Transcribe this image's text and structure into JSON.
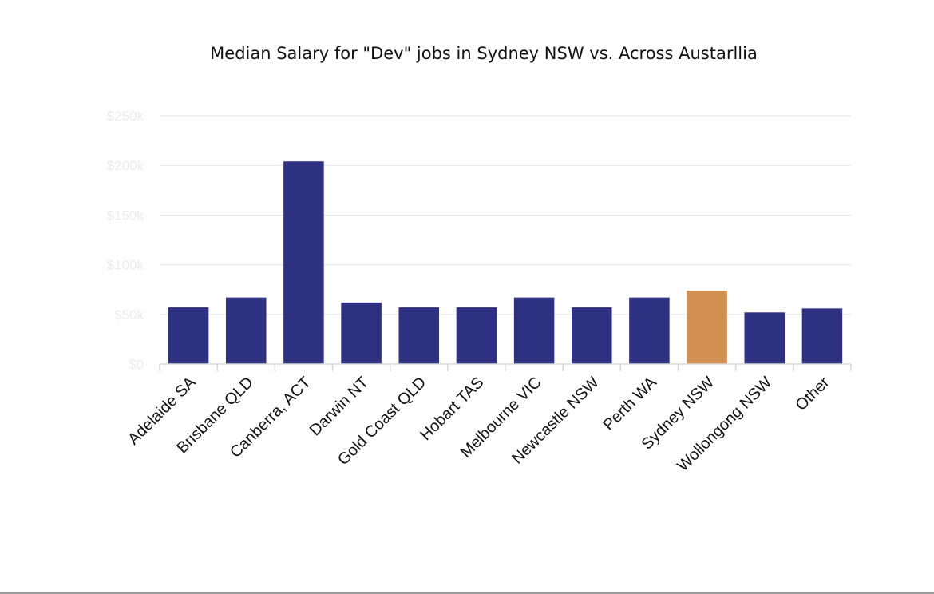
{
  "chart_data": {
    "type": "bar",
    "title": "Median Salary for \"Dev\" jobs in Sydney NSW vs. Across Austarllia",
    "xlabel": "",
    "ylabel": "",
    "ylim": [
      0,
      250000
    ],
    "y_ticks": [
      {
        "value": 0,
        "label": "$0"
      },
      {
        "value": 50000,
        "label": "$50k"
      },
      {
        "value": 100000,
        "label": "$100k"
      },
      {
        "value": 150000,
        "label": "$150k"
      },
      {
        "value": 200000,
        "label": "$200k"
      },
      {
        "value": 250000,
        "label": "$250k"
      }
    ],
    "grid": true,
    "legend": "none",
    "categories": [
      "Adelaide SA",
      "Brisbane QLD",
      "Canberra, ACT",
      "Darwin NT",
      "Gold Coast QLD",
      "Hobart TAS",
      "Melbourne VIC",
      "Newcastle NSW",
      "Perth WA",
      "Sydney NSW",
      "Wollongong NSW",
      "Other"
    ],
    "values": [
      57000,
      67000,
      204000,
      62000,
      57000,
      57000,
      67000,
      57000,
      67000,
      74000,
      52000,
      56000
    ],
    "colors": [
      "#2e3081",
      "#2e3081",
      "#2e3081",
      "#2e3081",
      "#2e3081",
      "#2e3081",
      "#2e3081",
      "#2e3081",
      "#2e3081",
      "#d28f52",
      "#2e3081",
      "#2e3081"
    ]
  }
}
